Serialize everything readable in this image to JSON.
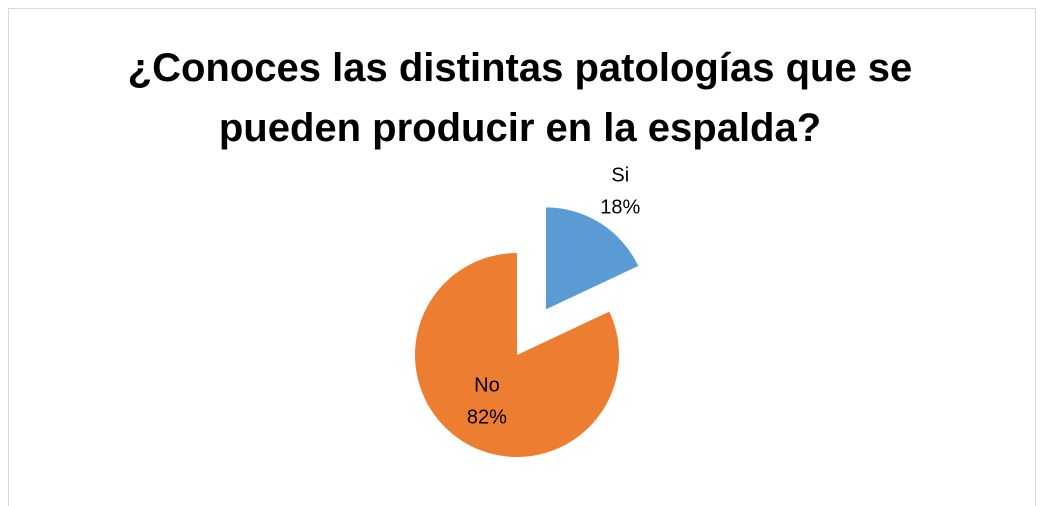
{
  "chart_data": {
    "type": "pie",
    "title": "¿Conoces las distintas patologías que se pueden producir en la espalda?",
    "categories": [
      "Si",
      "No"
    ],
    "values": [
      18,
      82
    ],
    "value_labels": [
      "18%",
      "82%"
    ],
    "colors": [
      "#5b9bd5",
      "#ed7d31"
    ]
  }
}
